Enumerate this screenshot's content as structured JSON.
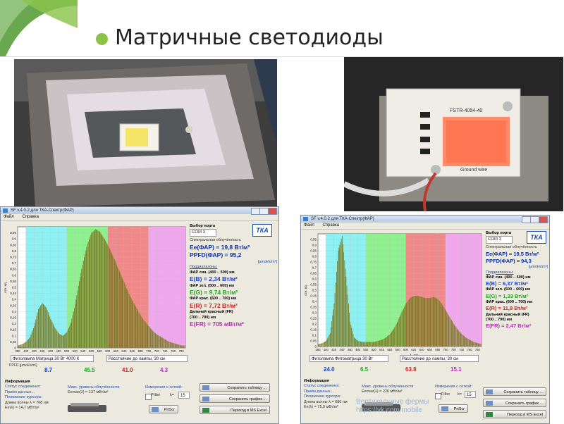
{
  "slide": {
    "title": "Матричные светодиоды"
  },
  "watermark": {
    "line1": "Вертикальные фермы",
    "line2": "https://vk.com/mobile"
  },
  "photos": {
    "left": {
      "label": ""
    },
    "right": {
      "board_text": "FSTR-4054-40",
      "board_text2": "Ground wire"
    }
  },
  "apps": [
    {
      "id": "left",
      "titlebar": "SF v.4.0.2 для ТКА-Спектр(ФАР)",
      "menu": [
        "Файл",
        "Справка"
      ],
      "port": {
        "label": "Выбор порта",
        "value": "COM 3"
      },
      "logo": "ТКА",
      "spectral_label": "Спектральная облучённость",
      "ee_par": "Ee(ФАР) = 19,8 Вт/м²",
      "ppfd": "PPFD(ФАР) = 95,2",
      "ppfd_unit": "[µmol/s/m²]",
      "subranges_label": "Поддиапазоны:",
      "blue_label": "ФАР син. (400 .. 500) нм",
      "blue_val": "E(B) = 2,34 Вт/м²",
      "green_label": "ФАР зел. (500 .. 600) нм",
      "green_val": "E(G) = 9,74 Вт/м²",
      "red_label": "ФАР крас. (600 .. 700) нм",
      "red_val": "E(R) = 7,72 Вт/м²",
      "fr_label": "Дальний красный (FR)",
      "fr_range": "(700 .. 790) нм",
      "fr_val": "E(FR) = 705 мВт/м²",
      "lamp_field": "Фитолампа Матрица 30 Вт 4000 К",
      "distance_field": "Расстояние до лампы, 30 см",
      "ppfd_row_label": "PPFD [µmol/s/m²]",
      "ppfd_row": [
        "8.7",
        "45.5",
        "41.0",
        "4.3"
      ],
      "info": {
        "title": "Информация",
        "status": "Статус соединения:",
        "status_val": "Приём данных...",
        "cursor": "Положение курсора:",
        "wave": "Длина волны λ = 768 нм",
        "ee": "Ee(λ) = 14,7 мВт/м²",
        "max_label": "Макс. уровень облучённости",
        "max_val": "Eemax(λ) = 137 мВт/м²",
        "grid_label": "Измерения с сеткой:",
        "filter": "Filter",
        "k_label": "k=",
        "k_val": "15",
        "prtscr": "PrtScr"
      },
      "buttons": [
        "Сохранить таблицу ...",
        "Сохранить график ...",
        "Переход в MS Excel"
      ],
      "chart_data": {
        "type": "bar",
        "xlabel": "λ, нм",
        "ylabel": "отн. ед.",
        "xlim": [
          380,
          790
        ],
        "ylim": [
          0,
          1.0
        ],
        "x_ticks": [
          380,
          400,
          420,
          440,
          460,
          480,
          500,
          520,
          540,
          560,
          580,
          600,
          620,
          640,
          660,
          680,
          700,
          720,
          740,
          760,
          780
        ],
        "y_ticks": [
          0,
          0.05,
          0.1,
          0.15,
          0.2,
          0.25,
          0.3,
          0.35,
          0.4,
          0.45,
          0.5,
          0.55,
          0.6,
          0.65,
          0.7,
          0.75,
          0.8,
          0.85,
          0.9,
          0.95
        ],
        "y_tick_labels": [
          "0",
          "0,05",
          "0,1",
          "0,15",
          "0,2",
          "0,25",
          "0,3",
          "0,35",
          "0,4",
          "0,45",
          "0,5",
          "0,55",
          "0,6",
          "0,65",
          "0,7",
          "0,75",
          "0,8",
          "0,85",
          "0,9",
          "0,95"
        ],
        "bands": [
          {
            "from": 400,
            "to": 500,
            "color": "#8ef0f0"
          },
          {
            "from": 500,
            "to": 600,
            "color": "#8ef08e"
          },
          {
            "from": 600,
            "to": 700,
            "color": "#f08a8a"
          },
          {
            "from": 700,
            "to": 790,
            "color": "#f0a8ec"
          }
        ],
        "x": [
          380,
          390,
          400,
          410,
          420,
          430,
          440,
          450,
          460,
          470,
          480,
          490,
          500,
          510,
          520,
          530,
          540,
          550,
          560,
          570,
          580,
          590,
          600,
          610,
          620,
          630,
          640,
          650,
          660,
          670,
          680,
          690,
          700,
          710,
          720,
          730,
          740,
          750,
          760,
          770,
          780,
          790
        ],
        "values": [
          0.02,
          0.03,
          0.05,
          0.09,
          0.18,
          0.32,
          0.37,
          0.33,
          0.24,
          0.17,
          0.12,
          0.1,
          0.13,
          0.21,
          0.36,
          0.55,
          0.72,
          0.86,
          0.95,
          0.98,
          0.96,
          0.91,
          0.85,
          0.78,
          0.7,
          0.62,
          0.54,
          0.46,
          0.39,
          0.33,
          0.27,
          0.22,
          0.18,
          0.14,
          0.11,
          0.09,
          0.07,
          0.05,
          0.04,
          0.03,
          0.02,
          0.02
        ]
      }
    },
    {
      "id": "right",
      "titlebar": "SF v.4.0.2 для ТКА-Спектр(ФАР)",
      "menu": [
        "Файл",
        "Справка"
      ],
      "port": {
        "label": "Выбор порта",
        "value": "COM 3"
      },
      "logo": "ТКА",
      "spectral_label": "Спектральная облучённость",
      "ee_par": "Ee(ФАР) = 19,5 Вт/м²",
      "ppfd": "PPFD(ФАР) = 94,3",
      "ppfd_unit": "[µmol/s/m²]",
      "subranges_label": "Поддиапазоны:",
      "blue_label": "ФАР син. (400 .. 500) нм",
      "blue_val": "E(B) = 6,37 Вт/м²",
      "green_label": "ФАР зел. (500 .. 600) нм",
      "green_val": "E(G) = 1,33 Вт/м²",
      "red_label": "ФАР крас. (600 .. 700) нм",
      "red_val": "E(R) = 11,8 Вт/м²",
      "fr_label": "Дальний красный (FR)",
      "fr_range": "(700 .. 790) нм",
      "fr_val": "E(FR) = 2,47 Вт/м²",
      "lamp_field": "Фитолампа Фитоматрица 30 Вт",
      "distance_field": "Расстояние до лампы, 30 см",
      "ppfd_row_label": "",
      "ppfd_row": [
        "24.0",
        "6.5",
        "63.8",
        "15.1"
      ],
      "info": {
        "title": "Информация",
        "status": "Статус соединения:",
        "status_val": "Приём данных...",
        "cursor": "Положение курсора:",
        "wave": "Длина волны λ = 686 нм",
        "ee": "Ee(λ) = 75,0 мВт/м²",
        "max_label": "Макс. уровень облучённости",
        "max_val": "Eemax(λ) = 226 мВт/м²",
        "grid_label": "Измерения с сеткой:",
        "filter": "Filter",
        "k_label": "k=",
        "k_val": "15",
        "prtscr": "PrtScr"
      },
      "buttons": [
        "Сохранить таблицу ...",
        "Сохранить график ...",
        "Переход в MS Excel"
      ],
      "chart_data": {
        "type": "bar",
        "xlabel": "λ, нм",
        "ylabel": "отн. ед.",
        "xlim": [
          380,
          790
        ],
        "ylim": [
          0,
          1.0
        ],
        "x_ticks": [
          380,
          400,
          420,
          440,
          460,
          480,
          500,
          520,
          540,
          560,
          580,
          600,
          620,
          640,
          660,
          680,
          700,
          720,
          740,
          760,
          780
        ],
        "y_ticks": [
          0,
          0.05,
          0.1,
          0.15,
          0.2,
          0.25,
          0.3,
          0.35,
          0.4,
          0.45,
          0.5,
          0.55,
          0.6,
          0.65,
          0.7,
          0.75,
          0.8,
          0.85,
          0.9,
          0.95
        ],
        "y_tick_labels": [
          "0",
          "0,05",
          "0,1",
          "0,15",
          "0,2",
          "0,25",
          "0,3",
          "0,35",
          "0,4",
          "0,45",
          "0,5",
          "0,55",
          "0,6",
          "0,65",
          "0,7",
          "0,75",
          "0,8",
          "0,85",
          "0,9",
          "0,95"
        ],
        "bands": [
          {
            "from": 400,
            "to": 500,
            "color": "#8ef0f0"
          },
          {
            "from": 500,
            "to": 600,
            "color": "#8ef08e"
          },
          {
            "from": 600,
            "to": 700,
            "color": "#f08a8a"
          },
          {
            "from": 700,
            "to": 790,
            "color": "#f0a8ec"
          }
        ],
        "x": [
          380,
          390,
          400,
          410,
          420,
          430,
          440,
          450,
          460,
          470,
          480,
          490,
          500,
          510,
          520,
          530,
          540,
          550,
          560,
          570,
          580,
          590,
          600,
          610,
          620,
          630,
          640,
          650,
          660,
          670,
          680,
          690,
          700,
          710,
          720,
          730,
          740,
          750,
          760,
          770,
          780,
          790
        ],
        "values": [
          0.02,
          0.03,
          0.05,
          0.12,
          0.38,
          0.85,
          0.98,
          0.62,
          0.22,
          0.08,
          0.05,
          0.04,
          0.04,
          0.04,
          0.04,
          0.05,
          0.06,
          0.08,
          0.11,
          0.16,
          0.23,
          0.31,
          0.38,
          0.43,
          0.45,
          0.45,
          0.44,
          0.43,
          0.43,
          0.44,
          0.42,
          0.38,
          0.32,
          0.26,
          0.2,
          0.15,
          0.11,
          0.08,
          0.06,
          0.04,
          0.03,
          0.02
        ]
      }
    }
  ]
}
